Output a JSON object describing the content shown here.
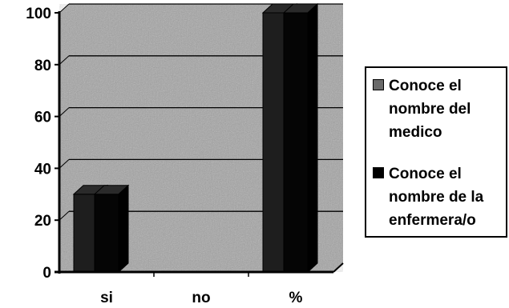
{
  "chart_data": {
    "type": "bar",
    "categories": [
      "si",
      "no",
      "%"
    ],
    "series": [
      {
        "name": "Conoce el nombre del medico",
        "values": [
          30,
          0,
          100
        ],
        "color": "#1a1a1a"
      },
      {
        "name": "Conoce el nombre de la enfermera/o",
        "values": [
          30,
          0,
          100
        ],
        "color": "#050505"
      }
    ],
    "ylim": [
      0,
      100
    ],
    "yticks": [
      0,
      20,
      40,
      60,
      80,
      100
    ],
    "grid": true,
    "legend_position": "right",
    "title": "",
    "xlabel": "",
    "ylabel": ""
  },
  "legend": {
    "items": [
      {
        "label": "Conoce el nombre del medico"
      },
      {
        "label": "Conoce el nombre de la enfermera/o"
      }
    ]
  },
  "colors": {
    "plot_fill": "#9a9a9a",
    "gridline": "#000000"
  }
}
